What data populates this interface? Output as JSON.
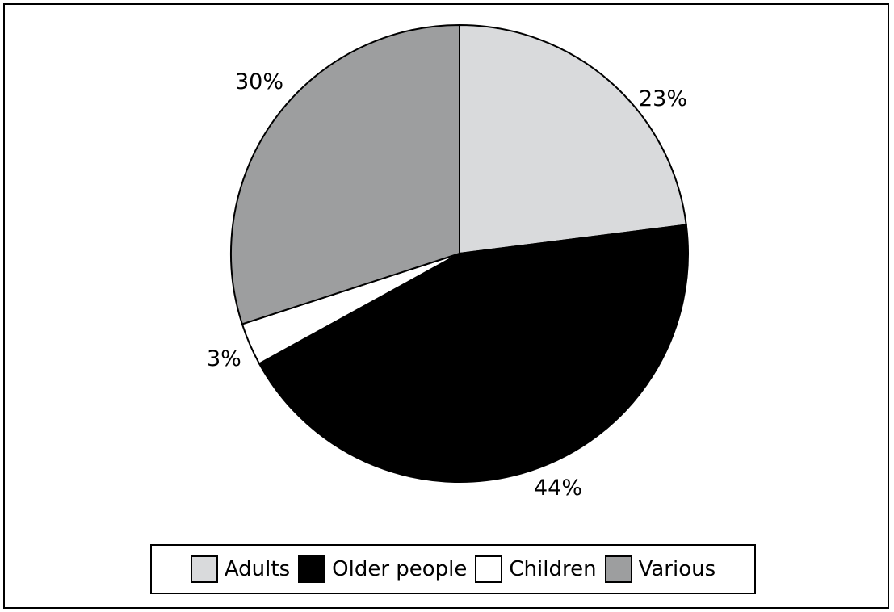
{
  "chart_data": {
    "type": "pie",
    "categories": [
      "Adults",
      "Older people",
      "Children",
      "Various"
    ],
    "values": [
      23,
      44,
      3,
      30
    ],
    "value_labels": [
      "23%",
      "44%",
      "3%",
      "30%"
    ],
    "colors": [
      "#d9dadc",
      "#000000",
      "#ffffff",
      "#9d9e9f"
    ],
    "start": "12 o'clock, clockwise",
    "legend_position": "bottom"
  }
}
